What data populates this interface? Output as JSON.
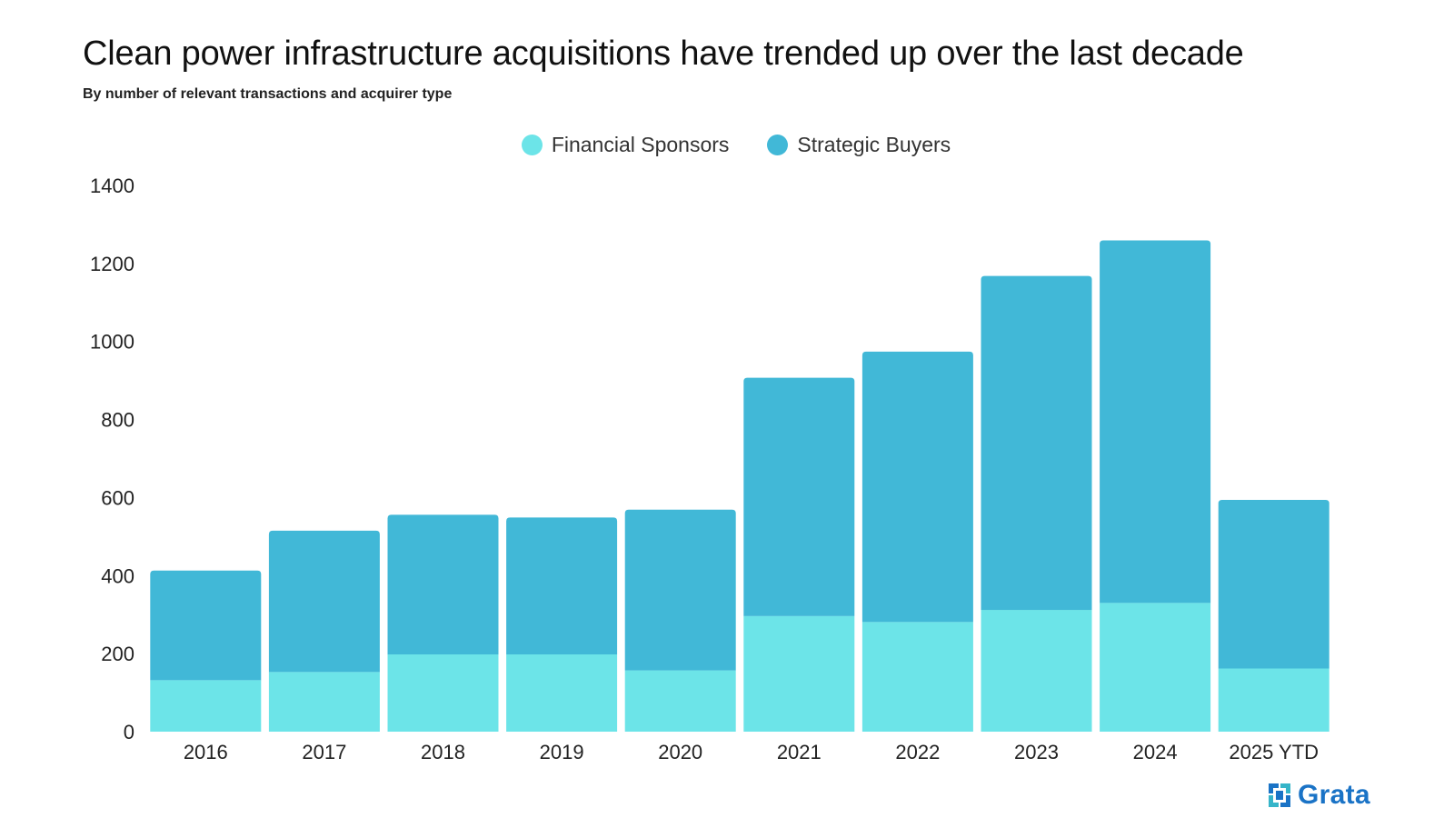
{
  "header": {
    "title": "Clean power infrastructure acquisitions have trended up over the last decade",
    "subtitle": "By number of relevant transactions and acquirer type"
  },
  "legend": {
    "items": [
      {
        "label": "Financial Sponsors",
        "color": "#6ce4e8"
      },
      {
        "label": "Strategic Buyers",
        "color": "#41b8d7"
      }
    ]
  },
  "brand": {
    "name": "Grata",
    "icon": "grata-logo-icon",
    "color": "#1a73c6"
  },
  "chart_data": {
    "type": "bar",
    "stacked": true,
    "title": "Clean power infrastructure acquisitions have trended up over the last decade",
    "subtitle": "By number of relevant transactions and acquirer type",
    "xlabel": "",
    "ylabel": "",
    "categories": [
      "2016",
      "2017",
      "2018",
      "2019",
      "2020",
      "2021",
      "2022",
      "2023",
      "2024",
      "2025 YTD"
    ],
    "series": [
      {
        "name": "Financial Sponsors",
        "color": "#6ce4e8",
        "values": [
          132,
          153,
          198,
          198,
          157,
          296,
          281,
          312,
          330,
          162
        ]
      },
      {
        "name": "Strategic Buyers",
        "color": "#41b8d7",
        "values": [
          281,
          362,
          358,
          351,
          412,
          611,
          693,
          856,
          929,
          432
        ]
      }
    ],
    "ylim": [
      0,
      1400
    ],
    "yticks": [
      0,
      200,
      400,
      600,
      800,
      1000,
      1200,
      1400
    ],
    "grid": false,
    "legend_position": "top-center"
  }
}
